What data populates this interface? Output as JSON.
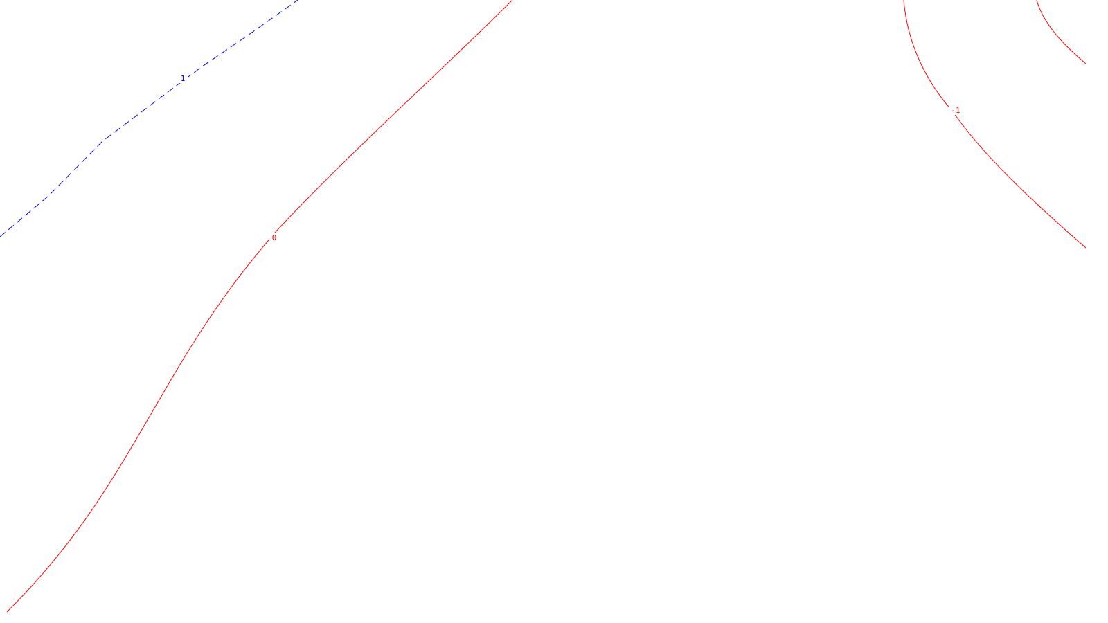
{
  "chart_data": {
    "type": "contour",
    "colors": {
      "background": "#ffffff",
      "level_1": "#0000ff",
      "level_0": "#ff0000",
      "level_neg1": "#ff0000"
    },
    "contours": [
      {
        "level": 1,
        "label": "1",
        "color": "#0000ff",
        "style": "dashed"
      },
      {
        "level": 0,
        "label": "0",
        "color": "#ff0000",
        "style": "solid"
      },
      {
        "level": -1,
        "label": "-1",
        "color": "#ff0000",
        "style": "solid"
      },
      {
        "level": -1,
        "label": "",
        "color": "#ff0000",
        "style": "solid"
      }
    ]
  }
}
